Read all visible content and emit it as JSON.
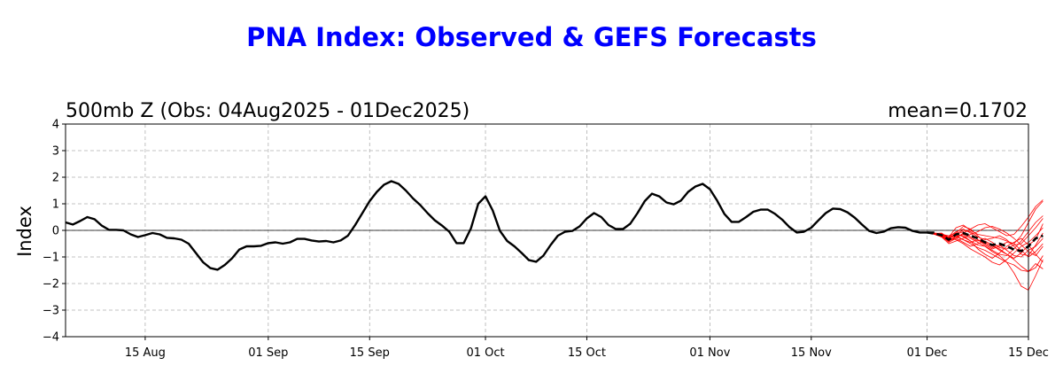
{
  "chart_data": {
    "type": "line",
    "title": "PNA Index: Observed & GEFS Forecasts",
    "subtitle": "500mb Z (Obs: 04Aug2025 - 01Dec2025)",
    "mean_label": "mean=0.1702",
    "ylabel": "Index",
    "xlabel": "",
    "xlim": [
      "2025-08-04",
      "2025-12-15"
    ],
    "ylim": [
      -4,
      4
    ],
    "yticks": [
      -4,
      -3,
      -2,
      -1,
      0,
      1,
      2,
      3,
      4
    ],
    "xticks": [
      {
        "date": "2025-08-15",
        "label": "15 Aug"
      },
      {
        "date": "2025-09-01",
        "label": "01 Sep"
      },
      {
        "date": "2025-09-15",
        "label": "15 Sep"
      },
      {
        "date": "2025-10-01",
        "label": "01 Oct"
      },
      {
        "date": "2025-10-15",
        "label": "15 Oct"
      },
      {
        "date": "2025-11-01",
        "label": "01 Nov"
      },
      {
        "date": "2025-11-15",
        "label": "15 Nov"
      },
      {
        "date": "2025-12-01",
        "label": "01 Dec"
      },
      {
        "date": "2025-12-15",
        "label": "15 Dec"
      }
    ],
    "grid": true,
    "colors": {
      "title": "#0000ff",
      "observed": "#000000",
      "ensemble": "#ff0000",
      "ensemble_mean": "#000000",
      "grid": "#b0b0b0"
    },
    "observed": {
      "start": "2025-08-04",
      "values": [
        0.3,
        0.22,
        0.35,
        0.5,
        0.42,
        0.18,
        0.02,
        0.02,
        0.0,
        -0.15,
        -0.25,
        -0.18,
        -0.1,
        -0.15,
        -0.28,
        -0.3,
        -0.35,
        -0.5,
        -0.85,
        -1.2,
        -1.42,
        -1.48,
        -1.3,
        -1.05,
        -0.72,
        -0.6,
        -0.6,
        -0.58,
        -0.48,
        -0.45,
        -0.5,
        -0.45,
        -0.32,
        -0.32,
        -0.38,
        -0.42,
        -0.4,
        -0.45,
        -0.38,
        -0.2,
        0.2,
        0.65,
        1.1,
        1.45,
        1.72,
        1.85,
        1.75,
        1.5,
        1.2,
        0.95,
        0.65,
        0.38,
        0.18,
        -0.05,
        -0.48,
        -0.48,
        0.08,
        1.0,
        1.28,
        0.75,
        -0.02,
        -0.4,
        -0.6,
        -0.85,
        -1.12,
        -1.18,
        -0.95,
        -0.55,
        -0.2,
        -0.05,
        -0.02,
        0.15,
        0.45,
        0.65,
        0.5,
        0.2,
        0.05,
        0.05,
        0.25,
        0.65,
        1.1,
        1.38,
        1.28,
        1.05,
        0.98,
        1.12,
        1.45,
        1.65,
        1.75,
        1.55,
        1.12,
        0.62,
        0.32,
        0.32,
        0.5,
        0.7,
        0.78,
        0.78,
        0.62,
        0.4,
        0.12,
        -0.08,
        -0.05,
        0.1,
        0.38,
        0.65,
        0.82,
        0.8,
        0.68,
        0.48,
        0.22,
        -0.02,
        -0.1,
        -0.05,
        0.08,
        0.12,
        0.1,
        -0.02,
        -0.08,
        -0.08,
        -0.08
      ]
    },
    "forecast": {
      "start": "2025-12-01",
      "ensemble_mean": [
        -0.08,
        -0.12,
        -0.18,
        -0.35,
        -0.15,
        -0.1,
        -0.2,
        -0.3,
        -0.45,
        -0.55,
        -0.5,
        -0.6,
        -0.72,
        -0.78,
        -0.6,
        -0.3,
        -0.2
      ],
      "members": [
        [
          -0.08,
          -0.1,
          -0.2,
          -0.4,
          -0.25,
          -0.15,
          -0.3,
          -0.45,
          -0.6,
          -0.8,
          -0.95,
          -1.2,
          -1.6,
          -2.1,
          -2.25,
          -1.7,
          -1.1
        ],
        [
          -0.08,
          -0.15,
          -0.25,
          -0.35,
          -0.1,
          0.15,
          0.05,
          -0.2,
          -0.45,
          -0.6,
          -0.7,
          -0.9,
          -1.1,
          -1.35,
          -1.55,
          -1.4,
          -0.95
        ],
        [
          -0.08,
          -0.12,
          -0.1,
          -0.3,
          -0.2,
          -0.35,
          -0.5,
          -0.65,
          -0.75,
          -0.9,
          -1.05,
          -1.2,
          -1.3,
          -1.5,
          -1.55,
          -1.25,
          -1.45
        ],
        [
          -0.08,
          -0.1,
          -0.18,
          -0.25,
          0.1,
          0.2,
          0.0,
          -0.15,
          -0.2,
          -0.25,
          -0.3,
          -0.4,
          -0.5,
          -0.2,
          0.3,
          0.8,
          1.1
        ],
        [
          -0.08,
          -0.13,
          -0.22,
          -0.45,
          -0.3,
          -0.1,
          0.05,
          0.2,
          0.25,
          0.1,
          -0.05,
          -0.2,
          -0.15,
          0.15,
          0.5,
          0.9,
          1.15
        ],
        [
          -0.08,
          -0.11,
          -0.15,
          -0.2,
          -0.1,
          -0.25,
          -0.4,
          -0.55,
          -0.6,
          -0.75,
          -0.9,
          -0.95,
          -0.7,
          -0.4,
          -0.05,
          0.3,
          0.55
        ],
        [
          -0.08,
          -0.14,
          -0.2,
          -0.3,
          -0.35,
          -0.5,
          -0.7,
          -0.85,
          -1.0,
          -1.2,
          -1.3,
          -1.1,
          -0.85,
          -0.6,
          -0.45,
          -0.2,
          0.1
        ],
        [
          -0.08,
          -0.12,
          -0.25,
          -0.5,
          -0.4,
          -0.3,
          -0.15,
          -0.05,
          0.1,
          0.15,
          0.05,
          -0.1,
          -0.3,
          -0.55,
          -0.8,
          -0.95,
          -0.6
        ],
        [
          -0.08,
          -0.1,
          -0.12,
          -0.25,
          -0.05,
          0.05,
          -0.1,
          -0.35,
          -0.55,
          -0.7,
          -0.6,
          -0.45,
          -0.5,
          -0.75,
          -1.0,
          -0.8,
          -0.5
        ],
        [
          -0.08,
          -0.15,
          -0.2,
          -0.38,
          -0.3,
          -0.45,
          -0.6,
          -0.5,
          -0.4,
          -0.55,
          -0.75,
          -0.9,
          -1.05,
          -0.85,
          -0.55,
          -0.35,
          0.25
        ],
        [
          -0.08,
          -0.13,
          -0.16,
          -0.28,
          -0.12,
          0.0,
          -0.05,
          -0.25,
          -0.35,
          -0.3,
          -0.2,
          -0.35,
          -0.6,
          -0.9,
          -0.95,
          -0.55,
          -0.1
        ],
        [
          -0.08,
          -0.11,
          -0.24,
          -0.42,
          -0.2,
          -0.2,
          -0.4,
          -0.7,
          -0.9,
          -1.05,
          -0.85,
          -0.6,
          -0.45,
          -0.3,
          -0.55,
          -0.9,
          -1.2
        ],
        [
          -0.08,
          -0.12,
          -0.18,
          -0.3,
          -0.15,
          -0.05,
          -0.25,
          -0.4,
          -0.3,
          -0.45,
          -0.65,
          -0.7,
          -0.55,
          -0.5,
          -0.2,
          0.1,
          0.45
        ],
        [
          -0.08,
          -0.14,
          -0.22,
          -0.35,
          -0.25,
          -0.35,
          -0.45,
          -0.35,
          -0.5,
          -0.65,
          -0.55,
          -0.75,
          -0.95,
          -1.0,
          -0.75,
          -0.6,
          -0.3
        ]
      ]
    }
  }
}
